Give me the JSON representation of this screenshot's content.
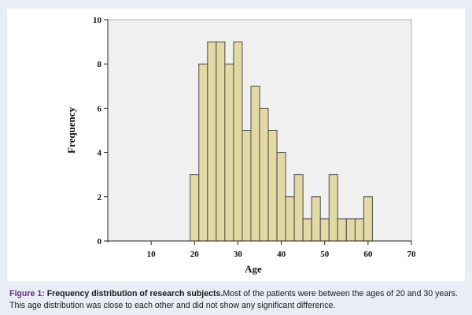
{
  "chart_data": {
    "type": "bar",
    "title": "",
    "xlabel": "Age",
    "ylabel": "Frequency",
    "xlim": [
      0,
      70
    ],
    "ylim": [
      0,
      10
    ],
    "x_ticks": [
      "10",
      "20",
      "30",
      "40",
      "50",
      "60",
      "70"
    ],
    "y_ticks": [
      "0",
      "2",
      "4",
      "6",
      "8",
      "10"
    ],
    "bin_width": 2,
    "bins": [
      {
        "start": 19,
        "end": 21,
        "value": 3
      },
      {
        "start": 21,
        "end": 23,
        "value": 8
      },
      {
        "start": 23,
        "end": 25,
        "value": 9
      },
      {
        "start": 25,
        "end": 27,
        "value": 9
      },
      {
        "start": 27,
        "end": 29,
        "value": 8
      },
      {
        "start": 29,
        "end": 31,
        "value": 9
      },
      {
        "start": 31,
        "end": 33,
        "value": 5
      },
      {
        "start": 33,
        "end": 35,
        "value": 7
      },
      {
        "start": 35,
        "end": 37,
        "value": 6
      },
      {
        "start": 37,
        "end": 39,
        "value": 5
      },
      {
        "start": 39,
        "end": 41,
        "value": 4
      },
      {
        "start": 41,
        "end": 43,
        "value": 2
      },
      {
        "start": 43,
        "end": 45,
        "value": 3
      },
      {
        "start": 45,
        "end": 47,
        "value": 1
      },
      {
        "start": 47,
        "end": 49,
        "value": 2
      },
      {
        "start": 49,
        "end": 51,
        "value": 1
      },
      {
        "start": 51,
        "end": 53,
        "value": 3
      },
      {
        "start": 53,
        "end": 55,
        "value": 1
      },
      {
        "start": 55,
        "end": 57,
        "value": 1
      },
      {
        "start": 57,
        "end": 59,
        "value": 1
      },
      {
        "start": 59,
        "end": 61,
        "value": 2
      }
    ],
    "grid": false,
    "bar_fill": "#e3d9a5",
    "bar_stroke": "#3b3b3b",
    "plot_background": "#f0f0f0"
  },
  "caption": {
    "label": "Figure 1:",
    "title": "Frequency distribution of research subjects.",
    "text": "Most of the patients were between the ages of 20 and 30 years. This age distribution was close to each other and did not show any significant difference."
  },
  "colors": {
    "panel_background": "#e9eef6",
    "caption_label": "#6a2a7a"
  }
}
